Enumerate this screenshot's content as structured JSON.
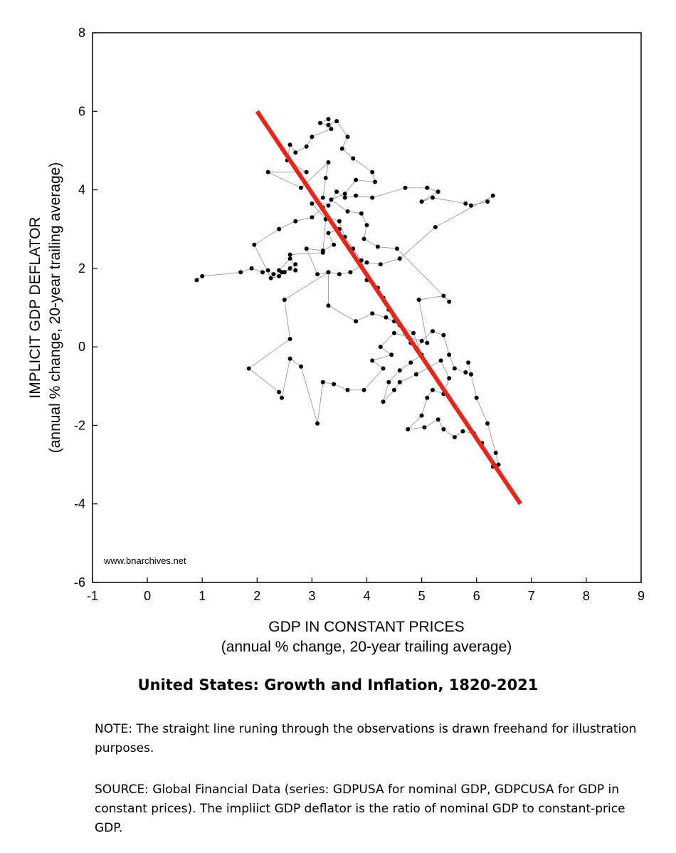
{
  "chart_data": {
    "type": "scatter",
    "connected": true,
    "title": "United States: Growth and Inflation, 1820-2021",
    "xlabel": "GDP IN CONSTANT PRICES",
    "xlabel_sub": "(annual % change, 20-year trailing average)",
    "ylabel": "IMPLICIT GDP DEFLATOR",
    "ylabel_sub": "(annual % change, 20-year trailing average)",
    "xlim": [
      -1,
      9
    ],
    "ylim": [
      -6,
      8
    ],
    "xticks": [
      -1,
      0,
      1,
      2,
      3,
      4,
      5,
      6,
      7,
      8,
      9
    ],
    "yticks": [
      -6,
      -4,
      -2,
      0,
      2,
      4,
      6,
      8
    ],
    "watermark": "www.bnarchives.net",
    "trend_line": {
      "color": "#e8251c",
      "from": [
        2.0,
        6.0
      ],
      "to": [
        6.8,
        -4.0
      ]
    },
    "series": [
      {
        "name": "observations",
        "color": "#000000",
        "points": [
          [
            0.9,
            1.7
          ],
          [
            1.0,
            1.8
          ],
          [
            1.7,
            1.9
          ],
          [
            1.9,
            2.0
          ],
          [
            2.1,
            1.9
          ],
          [
            2.2,
            1.95
          ],
          [
            2.3,
            1.85
          ],
          [
            2.45,
            1.9
          ],
          [
            2.6,
            2.0
          ],
          [
            2.7,
            2.1
          ],
          [
            2.5,
            1.9
          ],
          [
            2.4,
            1.8
          ],
          [
            2.25,
            1.75
          ],
          [
            1.95,
            2.6
          ],
          [
            2.4,
            3.0
          ],
          [
            2.7,
            3.2
          ],
          [
            3.0,
            3.3
          ],
          [
            3.2,
            3.55
          ],
          [
            3.1,
            3.7
          ],
          [
            3.3,
            3.6
          ],
          [
            3.45,
            3.95
          ],
          [
            3.6,
            3.8
          ],
          [
            3.8,
            3.85
          ],
          [
            4.1,
            3.8
          ],
          [
            4.7,
            4.05
          ],
          [
            5.1,
            4.05
          ],
          [
            5.3,
            3.95
          ],
          [
            5.0,
            3.7
          ],
          [
            5.2,
            3.8
          ],
          [
            5.8,
            3.65
          ],
          [
            5.9,
            3.6
          ],
          [
            6.2,
            3.7
          ],
          [
            6.3,
            3.85
          ],
          [
            5.25,
            3.05
          ],
          [
            4.6,
            2.25
          ],
          [
            4.25,
            2.1
          ],
          [
            4.0,
            2.15
          ],
          [
            3.7,
            1.9
          ],
          [
            3.5,
            1.85
          ],
          [
            3.3,
            1.9
          ],
          [
            3.1,
            1.85
          ],
          [
            2.9,
            2.5
          ],
          [
            3.2,
            2.45
          ],
          [
            3.4,
            2.6
          ],
          [
            3.3,
            2.9
          ],
          [
            3.5,
            3.0
          ],
          [
            3.3,
            3.3
          ],
          [
            3.5,
            3.2
          ],
          [
            3.6,
            2.8
          ],
          [
            3.75,
            2.5
          ],
          [
            3.9,
            2.2
          ],
          [
            4.0,
            1.7
          ],
          [
            4.2,
            1.5
          ],
          [
            4.3,
            1.25
          ],
          [
            4.4,
            0.95
          ],
          [
            4.5,
            0.65
          ],
          [
            4.7,
            0.35
          ],
          [
            4.8,
            0.1
          ],
          [
            4.9,
            -0.05
          ],
          [
            5.0,
            0.15
          ],
          [
            5.2,
            0.4
          ],
          [
            5.4,
            0.3
          ],
          [
            5.5,
            -0.2
          ],
          [
            5.6,
            -0.55
          ],
          [
            5.8,
            -0.65
          ],
          [
            5.9,
            -0.7
          ],
          [
            5.85,
            -0.4
          ],
          [
            6.0,
            -1.3
          ],
          [
            6.2,
            -1.95
          ],
          [
            6.35,
            -2.7
          ],
          [
            6.4,
            -3.0
          ],
          [
            6.3,
            -3.05
          ],
          [
            6.1,
            -2.45
          ],
          [
            5.95,
            -2.2
          ],
          [
            5.75,
            -2.15
          ],
          [
            5.6,
            -2.3
          ],
          [
            5.4,
            -2.1
          ],
          [
            5.3,
            -1.85
          ],
          [
            5.05,
            -2.05
          ],
          [
            4.75,
            -2.1
          ],
          [
            5.0,
            -1.75
          ],
          [
            5.1,
            -1.3
          ],
          [
            5.2,
            -1.1
          ],
          [
            5.4,
            -1.2
          ],
          [
            5.5,
            -0.8
          ],
          [
            5.35,
            -0.35
          ],
          [
            4.9,
            -0.7
          ],
          [
            4.6,
            -0.9
          ],
          [
            4.5,
            -1.1
          ],
          [
            4.3,
            -1.4
          ],
          [
            4.4,
            -0.9
          ],
          [
            4.6,
            -0.6
          ],
          [
            4.8,
            -0.4
          ],
          [
            5.0,
            -0.2
          ],
          [
            4.85,
            0.35
          ],
          [
            4.6,
            0.55
          ],
          [
            4.35,
            0.75
          ],
          [
            4.1,
            0.85
          ],
          [
            3.8,
            0.65
          ],
          [
            3.3,
            1.05
          ],
          [
            3.3,
            1.9
          ],
          [
            2.5,
            1.2
          ],
          [
            2.6,
            0.2
          ],
          [
            1.85,
            -0.55
          ],
          [
            2.4,
            -1.15
          ],
          [
            2.45,
            -1.3
          ],
          [
            2.6,
            -0.3
          ],
          [
            2.8,
            -0.5
          ],
          [
            3.1,
            -1.95
          ],
          [
            3.2,
            -0.9
          ],
          [
            3.4,
            -0.95
          ],
          [
            3.65,
            -1.1
          ],
          [
            3.95,
            -1.1
          ],
          [
            4.3,
            -0.55
          ],
          [
            4.1,
            -0.35
          ],
          [
            4.45,
            -0.2
          ],
          [
            4.25,
            0.0
          ],
          [
            4.5,
            0.35
          ],
          [
            4.75,
            0.25
          ],
          [
            5.1,
            0.1
          ],
          [
            4.95,
            1.2
          ],
          [
            5.4,
            1.3
          ],
          [
            5.5,
            1.15
          ],
          [
            4.55,
            2.5
          ],
          [
            4.2,
            2.55
          ],
          [
            3.95,
            2.75
          ],
          [
            4.0,
            3.1
          ],
          [
            3.9,
            3.4
          ],
          [
            3.65,
            3.45
          ],
          [
            3.35,
            3.75
          ],
          [
            3.6,
            3.9
          ],
          [
            3.8,
            4.25
          ],
          [
            4.15,
            4.2
          ],
          [
            4.1,
            4.45
          ],
          [
            3.75,
            4.8
          ],
          [
            3.55,
            5.05
          ],
          [
            3.65,
            5.35
          ],
          [
            3.45,
            5.75
          ],
          [
            3.3,
            5.65
          ],
          [
            3.15,
            5.7
          ],
          [
            3.3,
            5.8
          ],
          [
            3.35,
            5.55
          ],
          [
            3.0,
            5.35
          ],
          [
            2.9,
            5.1
          ],
          [
            2.7,
            4.95
          ],
          [
            2.6,
            5.15
          ],
          [
            2.55,
            4.75
          ],
          [
            2.9,
            4.45
          ],
          [
            2.2,
            4.45
          ],
          [
            2.8,
            4.05
          ],
          [
            3.3,
            4.7
          ],
          [
            3.25,
            4.3
          ],
          [
            3.2,
            3.8
          ],
          [
            3.0,
            3.65
          ],
          [
            3.25,
            3.25
          ],
          [
            3.2,
            2.4
          ],
          [
            2.6,
            2.35
          ],
          [
            2.7,
            1.95
          ],
          [
            2.4,
            1.95
          ],
          [
            2.6,
            2.25
          ]
        ]
      }
    ]
  },
  "note": "NOTE: The straight line runing through the observations is drawn freehand for illustration purposes.",
  "source": "SOURCE: Global Financial Data (series: GDPUSA for nominal GDP, GDPCUSA for GDP in constant prices). The impliict GDP deflator is the ratio of nominal GDP to constant-price GDP."
}
